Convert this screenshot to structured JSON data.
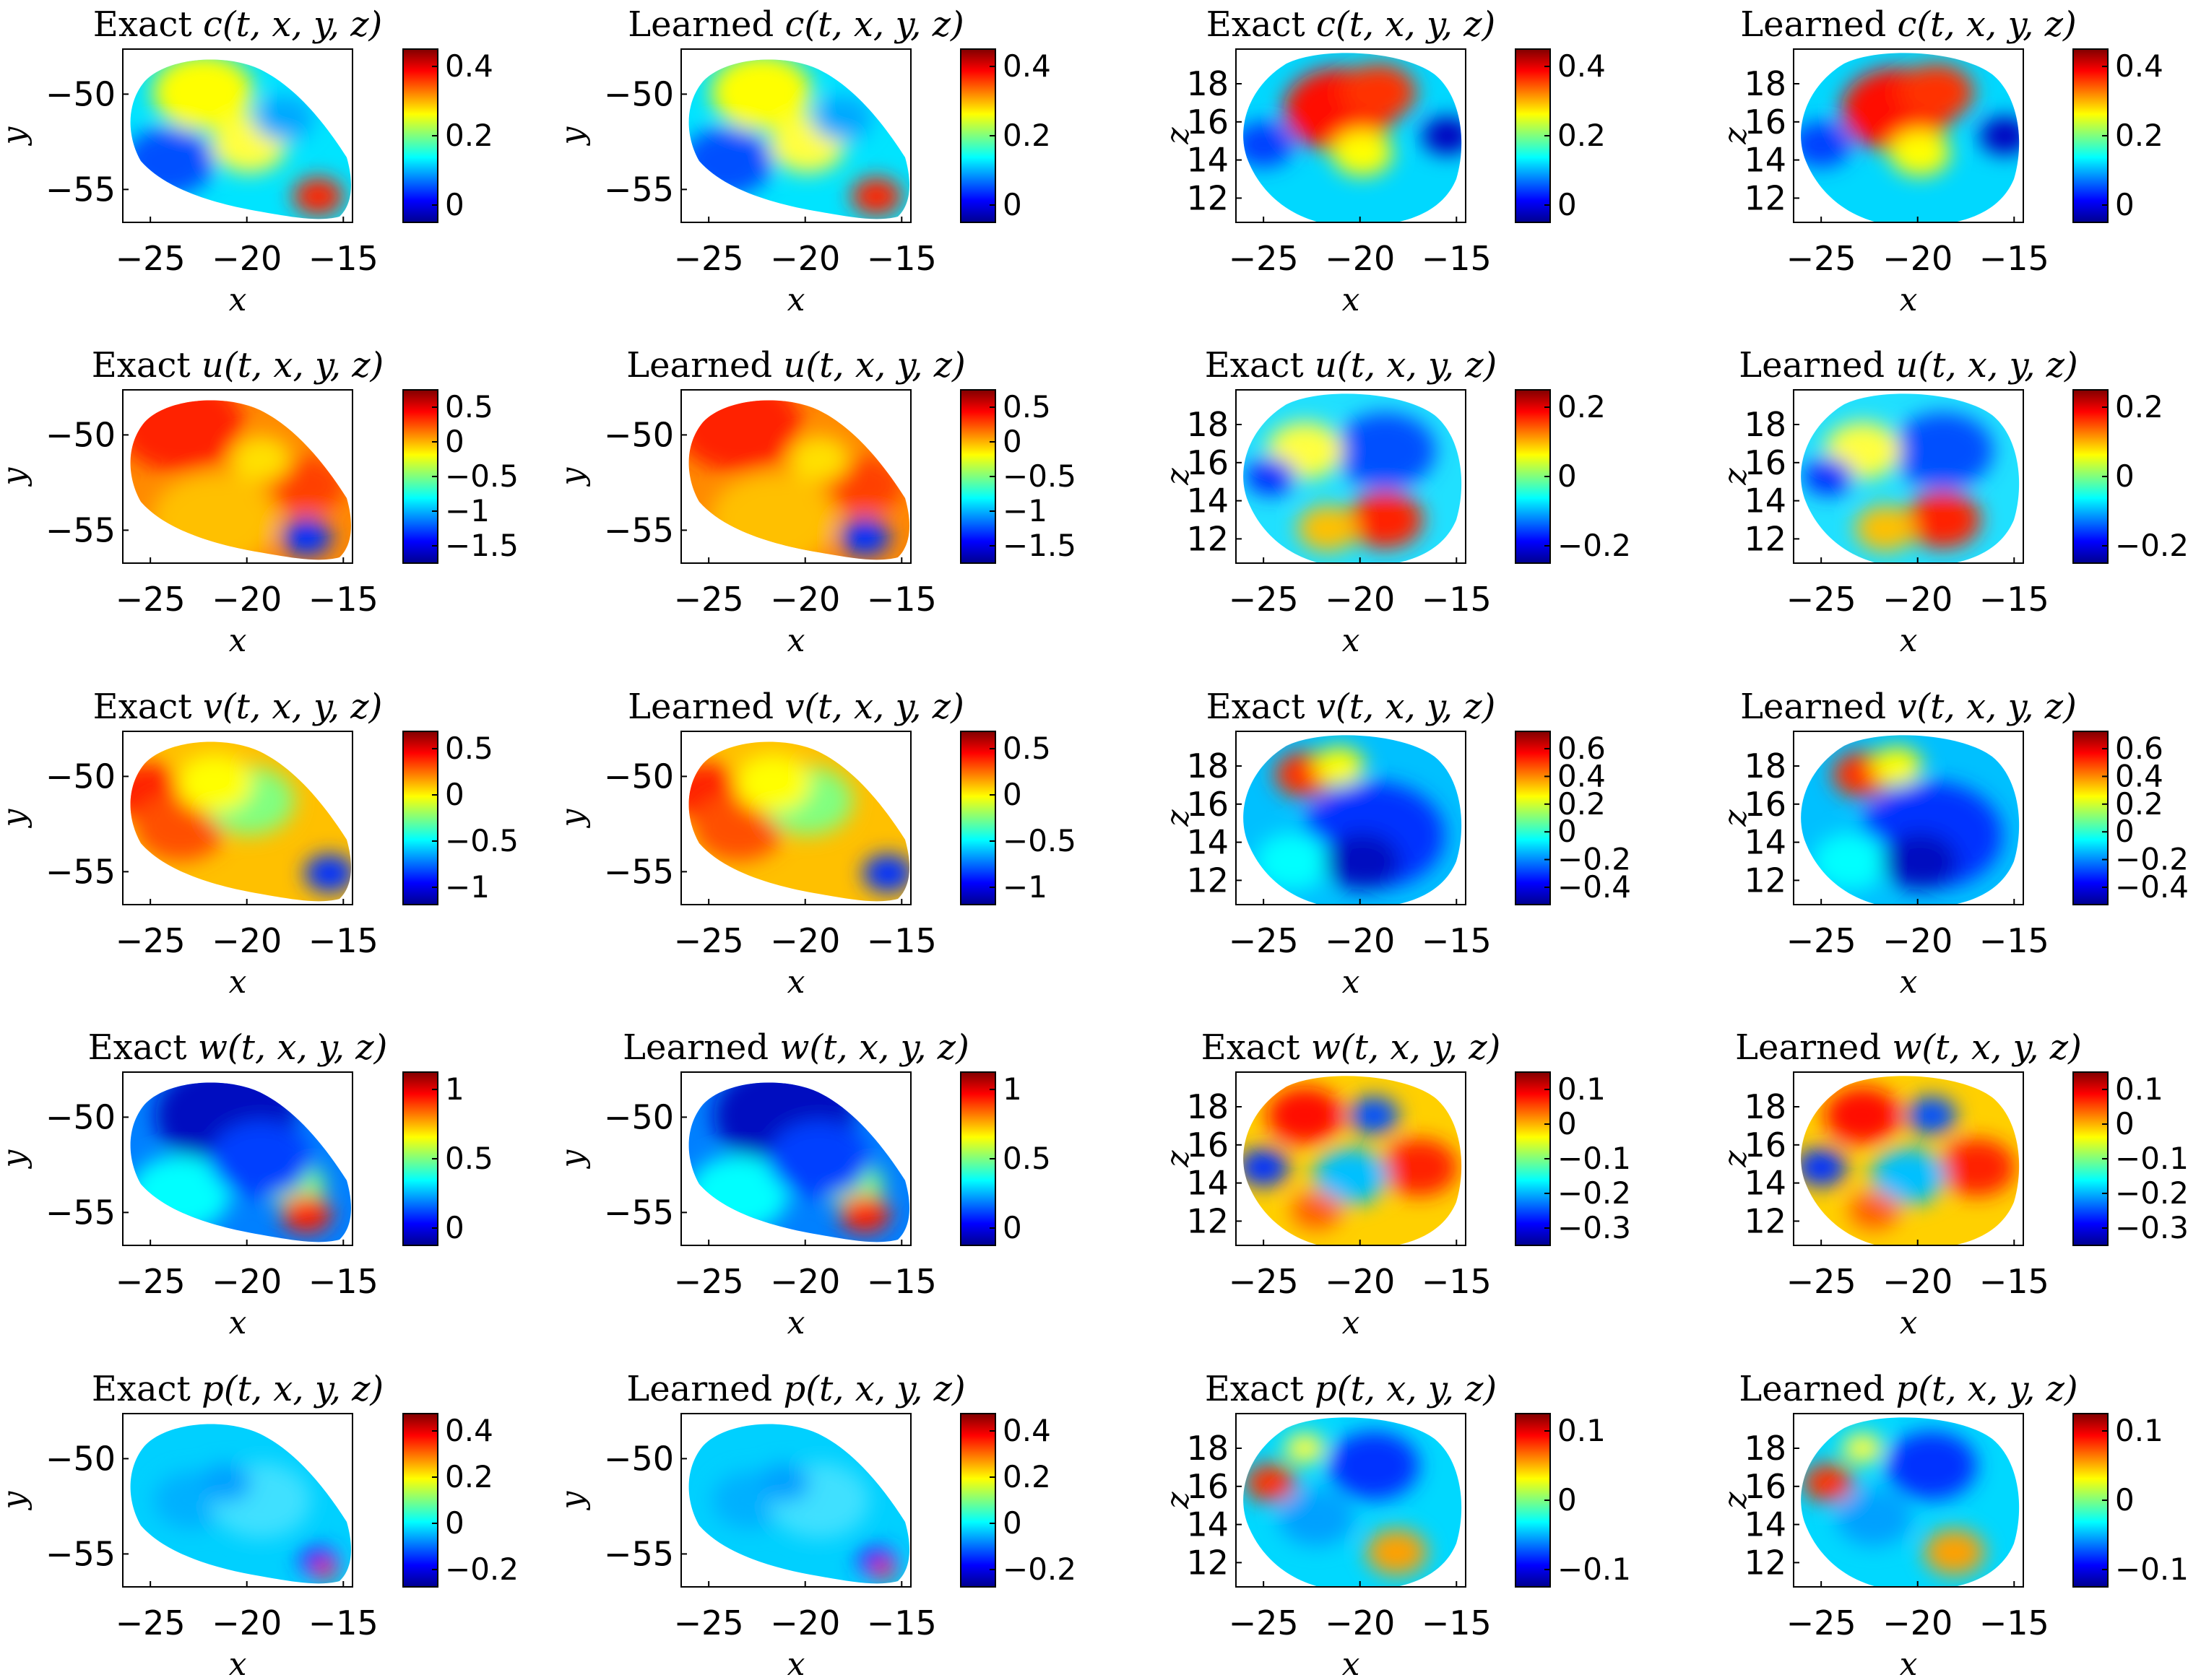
{
  "colors": {
    "colormap": [
      "#00008f",
      "#0000ff",
      "#007fff",
      "#00ffff",
      "#7fff7f",
      "#ffff00",
      "#ff7f00",
      "#ff0000",
      "#800000"
    ],
    "axis": "#000000",
    "background": "#ffffff"
  },
  "chart_data": [
    {
      "type": "heatmap",
      "title_prefix": "Exact",
      "title_math": "c(t, x, y, z)",
      "xlabel": "x",
      "ylabel": "y",
      "xticks": [
        "-25",
        "-20",
        "-15"
      ],
      "yticks": [
        "-50",
        "-55"
      ],
      "cbticks": [
        "0.4",
        "0.2",
        "0"
      ],
      "grid": false
    },
    {
      "type": "heatmap",
      "title_prefix": "Learned",
      "title_math": "c(t, x, y, z)",
      "xlabel": "x",
      "ylabel": "y",
      "xticks": [
        "-25",
        "-20",
        "-15"
      ],
      "yticks": [
        "-50",
        "-55"
      ],
      "cbticks": [
        "0.4",
        "0.2",
        "0"
      ],
      "grid": false
    },
    {
      "type": "heatmap",
      "title_prefix": "Exact",
      "title_math": "c(t, x, y, z)",
      "xlabel": "x",
      "ylabel": "z",
      "xticks": [
        "-25",
        "-20",
        "-15"
      ],
      "yticks": [
        "18",
        "16",
        "14",
        "12"
      ],
      "cbticks": [
        "0.4",
        "0.2",
        "0"
      ],
      "grid": false
    },
    {
      "type": "heatmap",
      "title_prefix": "Learned",
      "title_math": "c(t, x, y, z)",
      "xlabel": "x",
      "ylabel": "z",
      "xticks": [
        "-25",
        "-20",
        "-15"
      ],
      "yticks": [
        "18",
        "16",
        "14",
        "12"
      ],
      "cbticks": [
        "0.4",
        "0.2",
        "0"
      ],
      "grid": false
    },
    {
      "type": "heatmap",
      "title_prefix": "Exact",
      "title_math": "u(t, x, y, z)",
      "xlabel": "x",
      "ylabel": "y",
      "xticks": [
        "-25",
        "-20",
        "-15"
      ],
      "yticks": [
        "-50",
        "-55"
      ],
      "cbticks": [
        "0.5",
        "0",
        "-0.5",
        "-1",
        "-1.5"
      ],
      "grid": false
    },
    {
      "type": "heatmap",
      "title_prefix": "Learned",
      "title_math": "u(t, x, y, z)",
      "xlabel": "x",
      "ylabel": "y",
      "xticks": [
        "-25",
        "-20",
        "-15"
      ],
      "yticks": [
        "-50",
        "-55"
      ],
      "cbticks": [
        "0.5",
        "0",
        "-0.5",
        "-1",
        "-1.5"
      ],
      "grid": false
    },
    {
      "type": "heatmap",
      "title_prefix": "Exact",
      "title_math": "u(t, x, y, z)",
      "xlabel": "x",
      "ylabel": "z",
      "xticks": [
        "-25",
        "-20",
        "-15"
      ],
      "yticks": [
        "18",
        "16",
        "14",
        "12"
      ],
      "cbticks": [
        "0.2",
        "0",
        "-0.2"
      ],
      "grid": false
    },
    {
      "type": "heatmap",
      "title_prefix": "Learned",
      "title_math": "u(t, x, y, z)",
      "xlabel": "x",
      "ylabel": "z",
      "xticks": [
        "-25",
        "-20",
        "-15"
      ],
      "yticks": [
        "18",
        "16",
        "14",
        "12"
      ],
      "cbticks": [
        "0.2",
        "0",
        "-0.2"
      ],
      "grid": false
    },
    {
      "type": "heatmap",
      "title_prefix": "Exact",
      "title_math": "v(t, x, y, z)",
      "xlabel": "x",
      "ylabel": "y",
      "xticks": [
        "-25",
        "-20",
        "-15"
      ],
      "yticks": [
        "-50",
        "-55"
      ],
      "cbticks": [
        "0.5",
        "0",
        "-0.5",
        "-1"
      ],
      "grid": false
    },
    {
      "type": "heatmap",
      "title_prefix": "Learned",
      "title_math": "v(t, x, y, z)",
      "xlabel": "x",
      "ylabel": "y",
      "xticks": [
        "-25",
        "-20",
        "-15"
      ],
      "yticks": [
        "-50",
        "-55"
      ],
      "cbticks": [
        "0.5",
        "0",
        "-0.5",
        "-1"
      ],
      "grid": false
    },
    {
      "type": "heatmap",
      "title_prefix": "Exact",
      "title_math": "v(t, x, y, z)",
      "xlabel": "x",
      "ylabel": "z",
      "xticks": [
        "-25",
        "-20",
        "-15"
      ],
      "yticks": [
        "18",
        "16",
        "14",
        "12"
      ],
      "cbticks": [
        "0.6",
        "0.4",
        "0.2",
        "0",
        "-0.2",
        "-0.4"
      ],
      "grid": false
    },
    {
      "type": "heatmap",
      "title_prefix": "Learned",
      "title_math": "v(t, x, y, z)",
      "xlabel": "x",
      "ylabel": "z",
      "xticks": [
        "-25",
        "-20",
        "-15"
      ],
      "yticks": [
        "18",
        "16",
        "14",
        "12"
      ],
      "cbticks": [
        "0.6",
        "0.4",
        "0.2",
        "0",
        "-0.2",
        "-0.4"
      ],
      "grid": false
    },
    {
      "type": "heatmap",
      "title_prefix": "Exact",
      "title_math": "w(t, x, y, z)",
      "xlabel": "x",
      "ylabel": "y",
      "xticks": [
        "-25",
        "-20",
        "-15"
      ],
      "yticks": [
        "-50",
        "-55"
      ],
      "cbticks": [
        "1",
        "0.5",
        "0"
      ],
      "grid": false
    },
    {
      "type": "heatmap",
      "title_prefix": "Learned",
      "title_math": "w(t, x, y, z)",
      "xlabel": "x",
      "ylabel": "y",
      "xticks": [
        "-25",
        "-20",
        "-15"
      ],
      "yticks": [
        "-50",
        "-55"
      ],
      "cbticks": [
        "1",
        "0.5",
        "0"
      ],
      "grid": false
    },
    {
      "type": "heatmap",
      "title_prefix": "Exact",
      "title_math": "w(t, x, y, z)",
      "xlabel": "x",
      "ylabel": "z",
      "xticks": [
        "-25",
        "-20",
        "-15"
      ],
      "yticks": [
        "18",
        "16",
        "14",
        "12"
      ],
      "cbticks": [
        "0.1",
        "0",
        "-0.1",
        "-0.2",
        "-0.3"
      ],
      "grid": false
    },
    {
      "type": "heatmap",
      "title_prefix": "Learned",
      "title_math": "w(t, x, y, z)",
      "xlabel": "x",
      "ylabel": "z",
      "xticks": [
        "-25",
        "-20",
        "-15"
      ],
      "yticks": [
        "18",
        "16",
        "14",
        "12"
      ],
      "cbticks": [
        "0.1",
        "0",
        "-0.1",
        "-0.2",
        "-0.3"
      ],
      "grid": false
    },
    {
      "type": "heatmap",
      "title_prefix": "Exact",
      "title_math": "p(t, x, y, z)",
      "xlabel": "x",
      "ylabel": "y",
      "xticks": [
        "-25",
        "-20",
        "-15"
      ],
      "yticks": [
        "-50",
        "-55"
      ],
      "cbticks": [
        "0.4",
        "0.2",
        "0",
        "-0.2"
      ],
      "grid": false
    },
    {
      "type": "heatmap",
      "title_prefix": "Learned",
      "title_math": "p(t, x, y, z)",
      "xlabel": "x",
      "ylabel": "y",
      "xticks": [
        "-25",
        "-20",
        "-15"
      ],
      "yticks": [
        "-50",
        "-55"
      ],
      "cbticks": [
        "0.4",
        "0.2",
        "0",
        "-0.2"
      ],
      "grid": false
    },
    {
      "type": "heatmap",
      "title_prefix": "Exact",
      "title_math": "p(t, x, y, z)",
      "xlabel": "x",
      "ylabel": "z",
      "xticks": [
        "-25",
        "-20",
        "-15"
      ],
      "yticks": [
        "18",
        "16",
        "14",
        "12"
      ],
      "cbticks": [
        "0.1",
        "0",
        "-0.1"
      ],
      "grid": false
    },
    {
      "type": "heatmap",
      "title_prefix": "Learned",
      "title_math": "p(t, x, y, z)",
      "xlabel": "x",
      "ylabel": "z",
      "xticks": [
        "-25",
        "-20",
        "-15"
      ],
      "yticks": [
        "18",
        "16",
        "14",
        "12"
      ],
      "cbticks": [
        "0.1",
        "0",
        "-0.1"
      ],
      "grid": false
    }
  ]
}
